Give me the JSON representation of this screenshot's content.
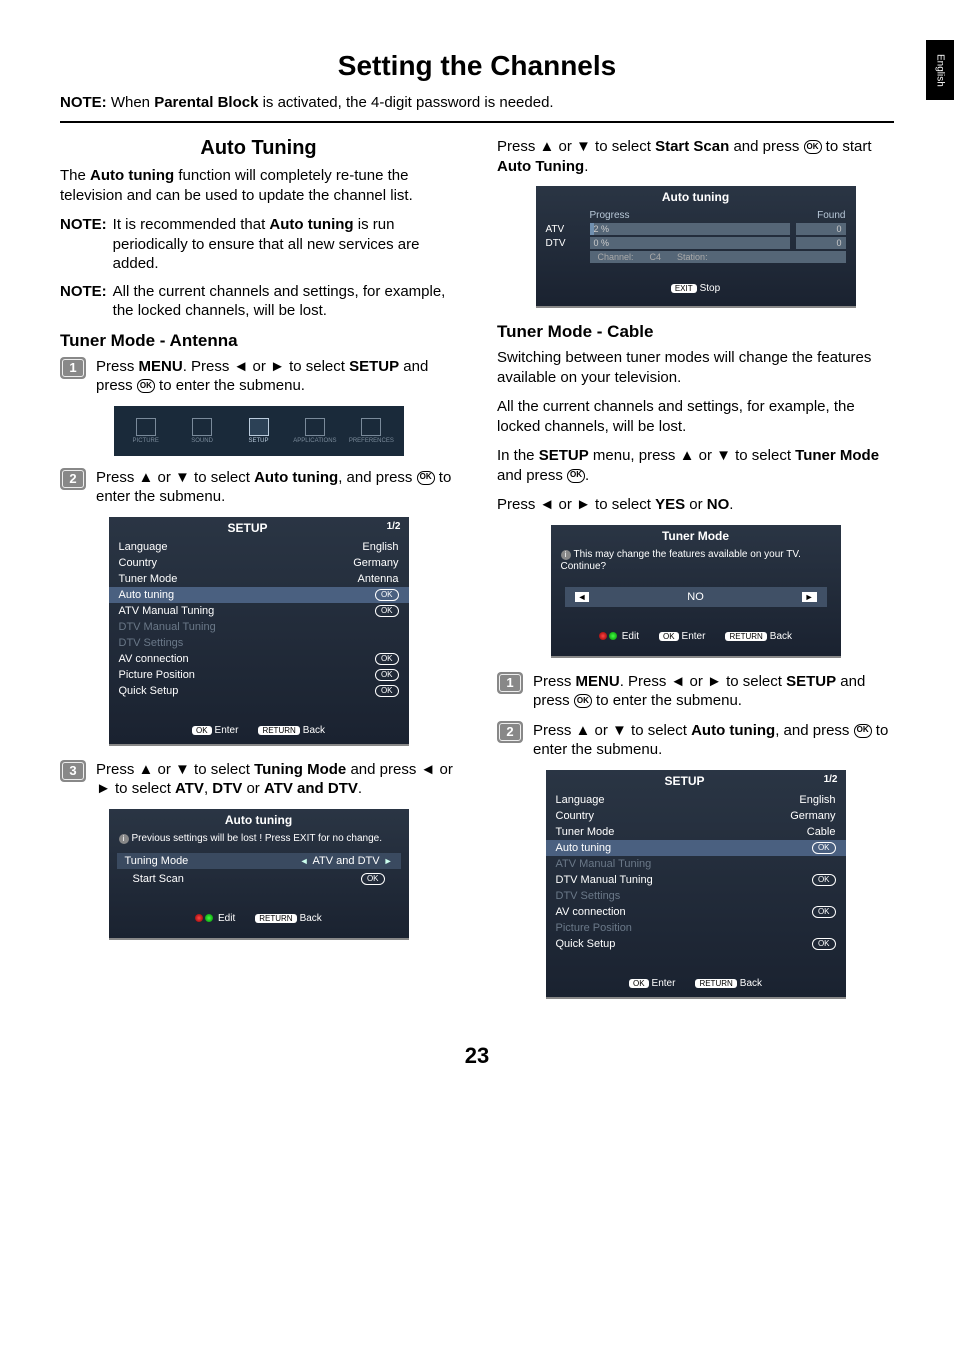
{
  "side_tab": "English",
  "page_title": "Setting the Channels",
  "top_note_prefix": "NOTE:",
  "top_note_body": " When Parental Block is activated, the 4-digit password is needed.",
  "top_note_bold": "Parental Block",
  "left": {
    "h2": "Auto Tuning",
    "intro_a": "The ",
    "intro_bold": "Auto tuning",
    "intro_b": " function will completely re-tune the television and can be used to update the channel list.",
    "note1_label": "NOTE:",
    "note1_a": "It is recommended that ",
    "note1_bold": "Auto tuning",
    "note1_b": " is run periodically to ensure that all new services are added.",
    "note2_label": "NOTE:",
    "note2": "All the current channels and settings, for example, the locked channels, will be lost.",
    "h3": "Tuner Mode - Antenna",
    "step1_a": "Press ",
    "step1_menu": "MENU",
    "step1_b": ". Press ◄ or ► to select ",
    "step1_setup": "SETUP",
    "step1_c": " and press ",
    "step1_d": " to enter  the submenu.",
    "icons": [
      "PICTURE",
      "SOUND",
      "SETUP",
      "APPLICATIONS",
      "PREFERENCES"
    ],
    "step2_a": "Press ▲ or ▼ to select ",
    "step2_bold": "Auto tuning",
    "step2_b": ", and press ",
    "step2_c": " to enter the submenu.",
    "setup_menu": {
      "title": "SETUP",
      "page": "1/2",
      "rows": [
        {
          "label": "Language",
          "val": "English",
          "type": "text"
        },
        {
          "label": "Country",
          "val": "Germany",
          "type": "text"
        },
        {
          "label": "Tuner Mode",
          "val": "Antenna",
          "type": "text"
        },
        {
          "label": "Auto tuning",
          "val": "OK",
          "type": "ok",
          "hl": true
        },
        {
          "label": "ATV Manual Tuning",
          "val": "OK",
          "type": "ok"
        },
        {
          "label": "DTV Manual Tuning",
          "val": "",
          "type": "dim"
        },
        {
          "label": "DTV Settings",
          "val": "",
          "type": "dim"
        },
        {
          "label": "AV connection",
          "val": "OK",
          "type": "ok"
        },
        {
          "label": "Picture Position",
          "val": "OK",
          "type": "ok"
        },
        {
          "label": "Quick Setup",
          "val": "OK",
          "type": "ok"
        }
      ],
      "foot_enter_pill": "OK",
      "foot_enter_txt": "Enter",
      "foot_back_pill": "RETURN",
      "foot_back_txt": "Back"
    },
    "step3_a": "Press ▲ or ▼ to select ",
    "step3_bold1": "Tuning Mode",
    "step3_b": " and press ◄ or ► to select ",
    "step3_bold2": "ATV",
    "step3_c": ", ",
    "step3_bold3": "DTV",
    "step3_d": " or ",
    "step3_bold4": "ATV and DTV",
    "step3_e": ".",
    "warn_menu": {
      "title": "Auto tuning",
      "note": "Previous settings will be lost ! Press EXIT for no change.",
      "row1_label": "Tuning Mode",
      "row1_val": "ATV and DTV",
      "row2_label": "Start Scan",
      "foot_edit": "Edit",
      "foot_back_pill": "RETURN",
      "foot_back_txt": "Back"
    }
  },
  "right": {
    "top_a": "Press ▲ or ▼ to select ",
    "top_bold1": "Start Scan",
    "top_b": " and press ",
    "top_c": " to start ",
    "top_bold2": "Auto Tuning",
    "top_d": ".",
    "progress": {
      "title": "Auto tuning",
      "hdr1": "Progress",
      "hdr2": "Found",
      "row1_label": "ATV",
      "row1_val": "2",
      "row1_unit": "%",
      "row1_found": "0",
      "row2_label": "DTV",
      "row2_val": "0",
      "row2_unit": "%",
      "row2_found": "0",
      "chan_lbl": "Channel:",
      "chan_val": "C4",
      "station_lbl": "Station:",
      "foot_pill": "EXIT",
      "foot_txt": "Stop"
    },
    "h3": "Tuner Mode - Cable",
    "p1": "Switching between tuner modes will change the features available on your television.",
    "p2": "All the current channels and settings, for example, the locked channels, will be lost.",
    "p3_a": "In the ",
    "p3_bold1": "SETUP",
    "p3_b": " menu, press ▲ or ▼ to select ",
    "p3_bold2": "Tuner Mode",
    "p3_c": " and press ",
    "p3_d": ".",
    "p4_a": "Press ◄ or ► to select ",
    "p4_bold1": "YES",
    "p4_b": " or ",
    "p4_bold2": "NO",
    "p4_c": ".",
    "confirm": {
      "title": "Tuner Mode",
      "note": "This may change the features available on your TV. Continue?",
      "val": "NO",
      "foot_edit": "Edit",
      "foot_enter_pill": "OK",
      "foot_enter_txt": "Enter",
      "foot_back_pill": "RETURN",
      "foot_back_txt": "Back"
    },
    "step1_a": "Press ",
    "step1_menu": "MENU",
    "step1_b": ". Press ◄ or ► to select ",
    "step1_setup": "SETUP",
    "step1_c": " and press ",
    "step1_d": " to enter  the submenu.",
    "step2_a": "Press ▲ or ▼ to select ",
    "step2_bold": "Auto tuning",
    "step2_b": ", and press ",
    "step2_c": " to enter the submenu.",
    "setup_menu": {
      "title": "SETUP",
      "page": "1/2",
      "rows": [
        {
          "label": "Language",
          "val": "English",
          "type": "text"
        },
        {
          "label": "Country",
          "val": "Germany",
          "type": "text"
        },
        {
          "label": "Tuner Mode",
          "val": "Cable",
          "type": "text"
        },
        {
          "label": "Auto tuning",
          "val": "OK",
          "type": "ok",
          "hl": true
        },
        {
          "label": "ATV Manual Tuning",
          "val": "",
          "type": "dim"
        },
        {
          "label": "DTV Manual Tuning",
          "val": "OK",
          "type": "ok"
        },
        {
          "label": "DTV Settings",
          "val": "",
          "type": "dim"
        },
        {
          "label": "AV connection",
          "val": "OK",
          "type": "ok"
        },
        {
          "label": "Picture Position",
          "val": "",
          "type": "dim"
        },
        {
          "label": "Quick Setup",
          "val": "OK",
          "type": "ok"
        }
      ],
      "foot_enter_pill": "OK",
      "foot_enter_txt": "Enter",
      "foot_back_pill": "RETURN",
      "foot_back_txt": "Back"
    }
  },
  "page_number": "23"
}
